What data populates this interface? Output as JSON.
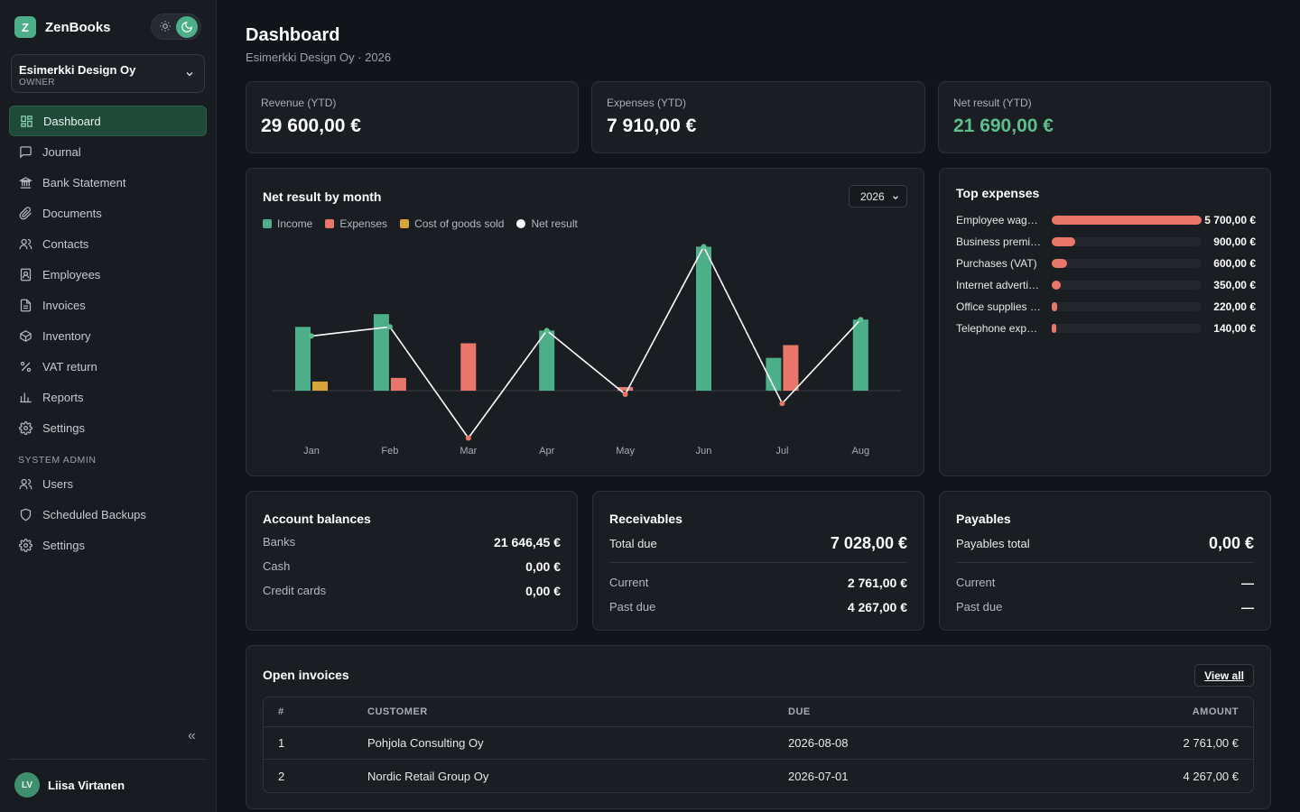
{
  "app": {
    "logo_letter": "Z",
    "name": "ZenBooks"
  },
  "org": {
    "name": "Esimerkki Design Oy",
    "role": "OWNER"
  },
  "nav": {
    "items": [
      {
        "label": "Dashboard",
        "icon": "dashboard-icon",
        "active": true
      },
      {
        "label": "Journal",
        "icon": "message-square-icon"
      },
      {
        "label": "Bank Statement",
        "icon": "bank-icon"
      },
      {
        "label": "Documents",
        "icon": "paperclip-icon"
      },
      {
        "label": "Contacts",
        "icon": "users-icon"
      },
      {
        "label": "Employees",
        "icon": "contact-card-icon"
      },
      {
        "label": "Invoices",
        "icon": "file-text-icon"
      },
      {
        "label": "Inventory",
        "icon": "package-icon"
      },
      {
        "label": "VAT return",
        "icon": "percent-icon"
      },
      {
        "label": "Reports",
        "icon": "bar-chart-icon"
      },
      {
        "label": "Settings",
        "icon": "gear-icon"
      }
    ],
    "admin_section": "SYSTEM ADMIN",
    "admin_items": [
      {
        "label": "Users",
        "icon": "users-icon"
      },
      {
        "label": "Scheduled Backups",
        "icon": "shield-icon"
      },
      {
        "label": "Settings",
        "icon": "gear-icon"
      }
    ],
    "collapse_label": "«"
  },
  "user": {
    "initials": "LV",
    "name": "Liisa Virtanen"
  },
  "header": {
    "title": "Dashboard",
    "subtitle": "Esimerkki Design Oy · 2026"
  },
  "kpis": {
    "revenue": {
      "label": "Revenue (YTD)",
      "value": "29 600,00 €"
    },
    "expenses": {
      "label": "Expenses (YTD)",
      "value": "7 910,00 €"
    },
    "net": {
      "label": "Net result (YTD)",
      "value": "21 690,00 €"
    }
  },
  "chart_card": {
    "title": "Net result by month",
    "year": "2026"
  },
  "chart_data": {
    "type": "bar",
    "title": "Net result by month",
    "categories": [
      "Jan",
      "Feb",
      "Mar",
      "Apr",
      "May",
      "Jun",
      "Jul",
      "Aug"
    ],
    "series": [
      {
        "name": "Income",
        "type": "bar",
        "color": "#4caf89",
        "values": [
          3500,
          4200,
          0,
          3300,
          0,
          7900,
          1800,
          3900
        ]
      },
      {
        "name": "Expenses",
        "type": "bar",
        "color": "#e8766a",
        "values": [
          0,
          700,
          2600,
          0,
          200,
          0,
          2500,
          0
        ]
      },
      {
        "name": "Cost of goods sold",
        "type": "bar",
        "color": "#d9a43a",
        "values": [
          500,
          0,
          0,
          0,
          0,
          0,
          0,
          0
        ]
      },
      {
        "name": "Net result",
        "type": "line",
        "color": "#ffffff",
        "values": [
          3000,
          3500,
          -2600,
          3300,
          -200,
          7900,
          -700,
          3900
        ]
      }
    ],
    "legend": "top-left",
    "grid": false
  },
  "top_expenses": {
    "title": "Top expenses",
    "items": [
      {
        "name": "Employee wag…",
        "value": "5 700,00 €",
        "amount": 5700
      },
      {
        "name": "Business premi…",
        "value": "900,00 €",
        "amount": 900
      },
      {
        "name": "Purchases (VAT)",
        "value": "600,00 €",
        "amount": 600
      },
      {
        "name": "Internet adverti…",
        "value": "350,00 €",
        "amount": 350
      },
      {
        "name": "Office supplies …",
        "value": "220,00 €",
        "amount": 220
      },
      {
        "name": "Telephone exp…",
        "value": "140,00 €",
        "amount": 140
      }
    ]
  },
  "balances": {
    "title": "Account balances",
    "rows": [
      {
        "label": "Banks",
        "value": "21 646,45 €"
      },
      {
        "label": "Cash",
        "value": "0,00 €"
      },
      {
        "label": "Credit cards",
        "value": "0,00 €"
      }
    ]
  },
  "receivables": {
    "title": "Receivables",
    "total_label": "Total due",
    "total_value": "7 028,00 €",
    "current_label": "Current",
    "current_value": "2 761,00 €",
    "past_label": "Past due",
    "past_value": "4 267,00 €"
  },
  "payables": {
    "title": "Payables",
    "total_label": "Payables total",
    "total_value": "0,00 €",
    "current_label": "Current",
    "current_value": "—",
    "past_label": "Past due",
    "past_value": "—"
  },
  "open_invoices": {
    "title": "Open invoices",
    "view_all": "View all",
    "columns": [
      "#",
      "CUSTOMER",
      "DUE",
      "AMOUNT"
    ],
    "rows": [
      {
        "num": "1",
        "customer": "Pohjola Consulting Oy",
        "due": "2026-08-08",
        "amount": "2 761,00 €"
      },
      {
        "num": "2",
        "customer": "Nordic Retail Group Oy",
        "due": "2026-07-01",
        "amount": "4 267,00 €"
      }
    ]
  }
}
